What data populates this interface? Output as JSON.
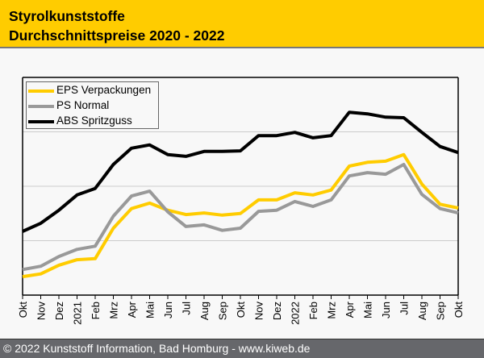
{
  "header": {
    "title_line1": "Styrolkunststoffe",
    "title_line2": "Durchschnittspreise 2020 - 2022"
  },
  "footer": {
    "text": "© 2022 Kunststoff Information, Bad Homburg - www.kiweb.de"
  },
  "colors": {
    "header_bg": "#ffcc00",
    "footer_bg": "#66676b",
    "eps": "#ffcc00",
    "ps": "#999999",
    "abs": "#000000",
    "grid": "#cccccc"
  },
  "chart_data": {
    "type": "line",
    "title": "Styrolkunststoffe Durchschnittspreise 2020 - 2022",
    "xlabel": "",
    "ylabel": "",
    "y_units_note": "no y-axis labels shown; values in relative gridline units",
    "ylim": [
      0,
      4
    ],
    "yticks_gridlines": [
      1,
      2,
      3
    ],
    "grid": true,
    "legend_position": "top-left",
    "categories": [
      "Okt",
      "Nov",
      "Dez",
      "2021",
      "Feb",
      "Mrz",
      "Apr",
      "Mai",
      "Jun",
      "Jul",
      "Aug",
      "Sep",
      "Okt",
      "Nov",
      "Dez",
      "2022",
      "Feb",
      "Mrz",
      "Apr",
      "Mai",
      "Jun",
      "Jul",
      "Aug",
      "Sep",
      "Okt"
    ],
    "series": [
      {
        "name": "EPS Verpackungen",
        "color": "#ffcc00",
        "values": [
          0.34,
          0.39,
          0.55,
          0.65,
          0.67,
          1.23,
          1.59,
          1.69,
          1.56,
          1.48,
          1.51,
          1.47,
          1.5,
          1.75,
          1.75,
          1.88,
          1.84,
          1.93,
          2.37,
          2.44,
          2.46,
          2.58,
          2.04,
          1.67,
          1.6
        ]
      },
      {
        "name": "PS Normal",
        "color": "#999999",
        "values": [
          0.47,
          0.53,
          0.71,
          0.84,
          0.9,
          1.45,
          1.82,
          1.91,
          1.53,
          1.26,
          1.29,
          1.19,
          1.23,
          1.54,
          1.56,
          1.72,
          1.63,
          1.75,
          2.19,
          2.25,
          2.22,
          2.4,
          1.85,
          1.59,
          1.51
        ]
      },
      {
        "name": "ABS Spritzguss",
        "color": "#000000",
        "values": [
          1.17,
          1.32,
          1.56,
          1.84,
          1.96,
          2.4,
          2.7,
          2.76,
          2.58,
          2.55,
          2.64,
          2.64,
          2.65,
          2.93,
          2.93,
          2.99,
          2.89,
          2.93,
          3.36,
          3.33,
          3.27,
          3.26,
          2.99,
          2.73,
          2.62
        ]
      }
    ]
  }
}
